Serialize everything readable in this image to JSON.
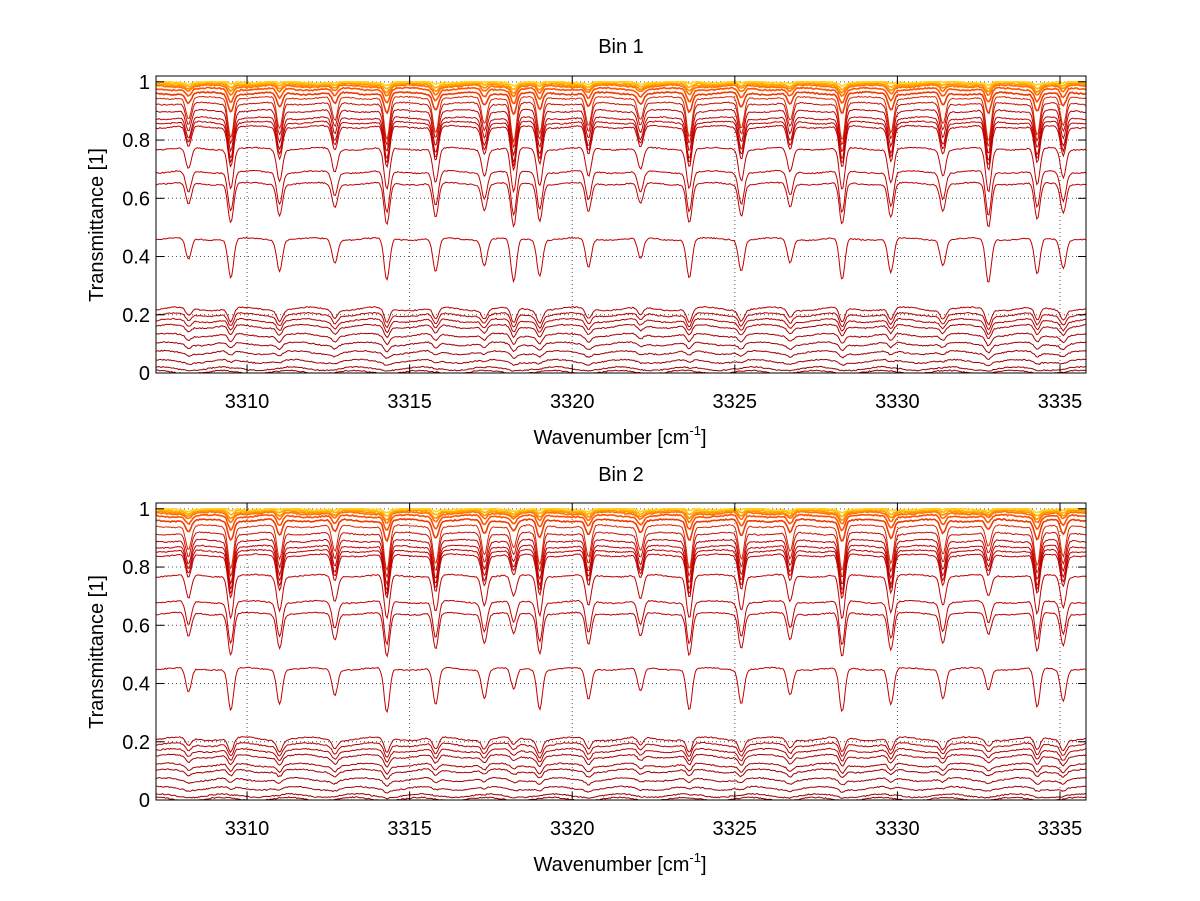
{
  "chart_data": [
    {
      "type": "line",
      "title": "Bin 1",
      "xlabel_base": "Wavenumber [cm",
      "xlabel_sup": "-1",
      "xlabel_close": "]",
      "ylabel": "Transmittance [1]",
      "xlim": [
        3307.2,
        3335.8
      ],
      "ylim": [
        0,
        1.02
      ],
      "xticks": [
        3310,
        3315,
        3320,
        3325,
        3330,
        3335
      ],
      "xtick_labels": [
        "3310",
        "3315",
        "3320",
        "3325",
        "3330",
        "3335"
      ],
      "yticks": [
        0,
        0.2,
        0.4,
        0.6,
        0.8,
        1
      ],
      "ytick_labels": [
        "0",
        "0.2",
        "0.4",
        "0.6",
        "0.8",
        "1"
      ],
      "grid": true,
      "absorption_lines_cm1": [
        3308.2,
        3309.5,
        3311.0,
        3312.7,
        3314.3,
        3315.8,
        3317.3,
        3318.2,
        3319.0,
        3320.5,
        3322.1,
        3323.6,
        3325.2,
        3326.7,
        3328.3,
        3329.8,
        3331.4,
        3332.8,
        3334.3,
        3335.1
      ],
      "series_baselines": [
        1.0,
        0.995,
        0.99,
        0.985,
        0.975,
        0.96,
        0.945,
        0.925,
        0.9,
        0.875,
        0.86,
        0.845,
        0.77,
        0.69,
        0.65,
        0.46,
        0.22,
        0.2,
        0.18,
        0.16,
        0.13,
        0.1,
        0.07,
        0.04,
        0.015,
        0.003
      ],
      "series_colors": [
        "#ffd21e",
        "#ffb000",
        "#ff9000",
        "#ff7000",
        "#ff5000",
        "#ee3a00",
        "#dd2400",
        "#c81000",
        "#c00000",
        "#c00000",
        "#c00000",
        "#c00000",
        "#c00000",
        "#c00000",
        "#c00000",
        "#c00000",
        "#b40000",
        "#b40000",
        "#b40000",
        "#a80000",
        "#a80000",
        "#a00000",
        "#a00000",
        "#a00000",
        "#990000",
        "#990000"
      ]
    },
    {
      "type": "line",
      "title": "Bin 2",
      "xlabel_base": "Wavenumber [cm",
      "xlabel_sup": "-1",
      "xlabel_close": "]",
      "ylabel": "Transmittance [1]",
      "xlim": [
        3307.2,
        3335.8
      ],
      "ylim": [
        0,
        1.02
      ],
      "xticks": [
        3310,
        3315,
        3320,
        3325,
        3330,
        3335
      ],
      "xtick_labels": [
        "3310",
        "3315",
        "3320",
        "3325",
        "3330",
        "3335"
      ],
      "yticks": [
        0,
        0.2,
        0.4,
        0.6,
        0.8,
        1
      ],
      "ytick_labels": [
        "0",
        "0.2",
        "0.4",
        "0.6",
        "0.8",
        "1"
      ],
      "grid": true,
      "absorption_lines_cm1": [
        3308.2,
        3309.5,
        3311.0,
        3312.7,
        3314.3,
        3315.8,
        3317.3,
        3318.2,
        3319.0,
        3320.5,
        3322.1,
        3323.6,
        3325.2,
        3326.7,
        3328.3,
        3329.8,
        3331.4,
        3332.8,
        3334.3,
        3335.1
      ],
      "series_baselines": [
        1.0,
        0.995,
        0.99,
        0.985,
        0.975,
        0.96,
        0.94,
        0.915,
        0.89,
        0.87,
        0.855,
        0.84,
        0.77,
        0.68,
        0.64,
        0.45,
        0.21,
        0.19,
        0.17,
        0.15,
        0.12,
        0.1,
        0.07,
        0.04,
        0.015,
        0.003
      ],
      "series_colors": [
        "#ffd21e",
        "#ffb000",
        "#ff9000",
        "#ff7000",
        "#ff5000",
        "#ee3a00",
        "#dd2400",
        "#c81000",
        "#c00000",
        "#c00000",
        "#c00000",
        "#c00000",
        "#c00000",
        "#c00000",
        "#c00000",
        "#c00000",
        "#b40000",
        "#b40000",
        "#b40000",
        "#a80000",
        "#a80000",
        "#a00000",
        "#a00000",
        "#a00000",
        "#990000",
        "#990000"
      ]
    }
  ]
}
